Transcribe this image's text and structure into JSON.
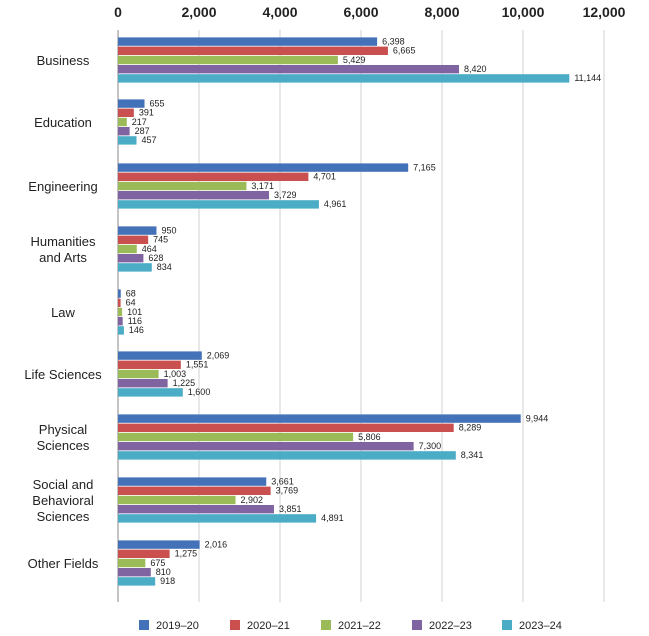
{
  "chart_data": {
    "type": "bar",
    "orientation": "horizontal",
    "title": "",
    "xlabel": "",
    "ylabel": "",
    "xlim": [
      0,
      12000
    ],
    "x_ticks": [
      0,
      2000,
      4000,
      6000,
      8000,
      10000,
      12000
    ],
    "x_tick_labels": [
      "0",
      "2,000",
      "4,000",
      "6,000",
      "8,000",
      "10,000",
      "12,000"
    ],
    "grid": true,
    "legend_position": "bottom",
    "categories": [
      [
        "Business"
      ],
      [
        "Education"
      ],
      [
        "Engineering"
      ],
      [
        "Humanities",
        "and Arts"
      ],
      [
        "Law"
      ],
      [
        "Life Sciences"
      ],
      [
        "Physical",
        "Sciences"
      ],
      [
        "Social and",
        "Behavioral",
        "Sciences"
      ],
      [
        "Other Fields"
      ]
    ],
    "series": [
      {
        "name": "2019–20",
        "color": "#4472b8",
        "values": [
          6398,
          655,
          7165,
          950,
          68,
          2069,
          9944,
          3661,
          2016
        ],
        "labels": [
          "6,398",
          "655",
          "7,165",
          "950",
          "68",
          "2,069",
          "9,944",
          "3,661",
          "2,016"
        ]
      },
      {
        "name": "2020–21",
        "color": "#c9504e",
        "values": [
          6665,
          391,
          4701,
          745,
          64,
          1551,
          8289,
          3769,
          1275
        ],
        "labels": [
          "6,665",
          "391",
          "4,701",
          "745",
          "64",
          "1,551",
          "8,289",
          "3,769",
          "1,275"
        ]
      },
      {
        "name": "2021–22",
        "color": "#9bbb59",
        "values": [
          5429,
          217,
          3171,
          464,
          101,
          1003,
          5806,
          2902,
          675
        ],
        "labels": [
          "5,429",
          "217",
          "3,171",
          "464",
          "101",
          "1,003",
          "5,806",
          "2,902",
          "675"
        ]
      },
      {
        "name": "2022–23",
        "color": "#8064a2",
        "values": [
          8420,
          287,
          3729,
          628,
          116,
          1225,
          7300,
          3851,
          810
        ],
        "labels": [
          "8,420",
          "287",
          "3,729",
          "628",
          "116",
          "1,225",
          "7,300",
          "3,851",
          "810"
        ]
      },
      {
        "name": "2023–24",
        "color": "#4bacc6",
        "values": [
          11144,
          457,
          4961,
          834,
          146,
          1600,
          8341,
          4891,
          918
        ],
        "labels": [
          "11,144",
          "457",
          "4,961",
          "834",
          "146",
          "1,600",
          "8,341",
          "4,891",
          "918"
        ]
      }
    ]
  }
}
